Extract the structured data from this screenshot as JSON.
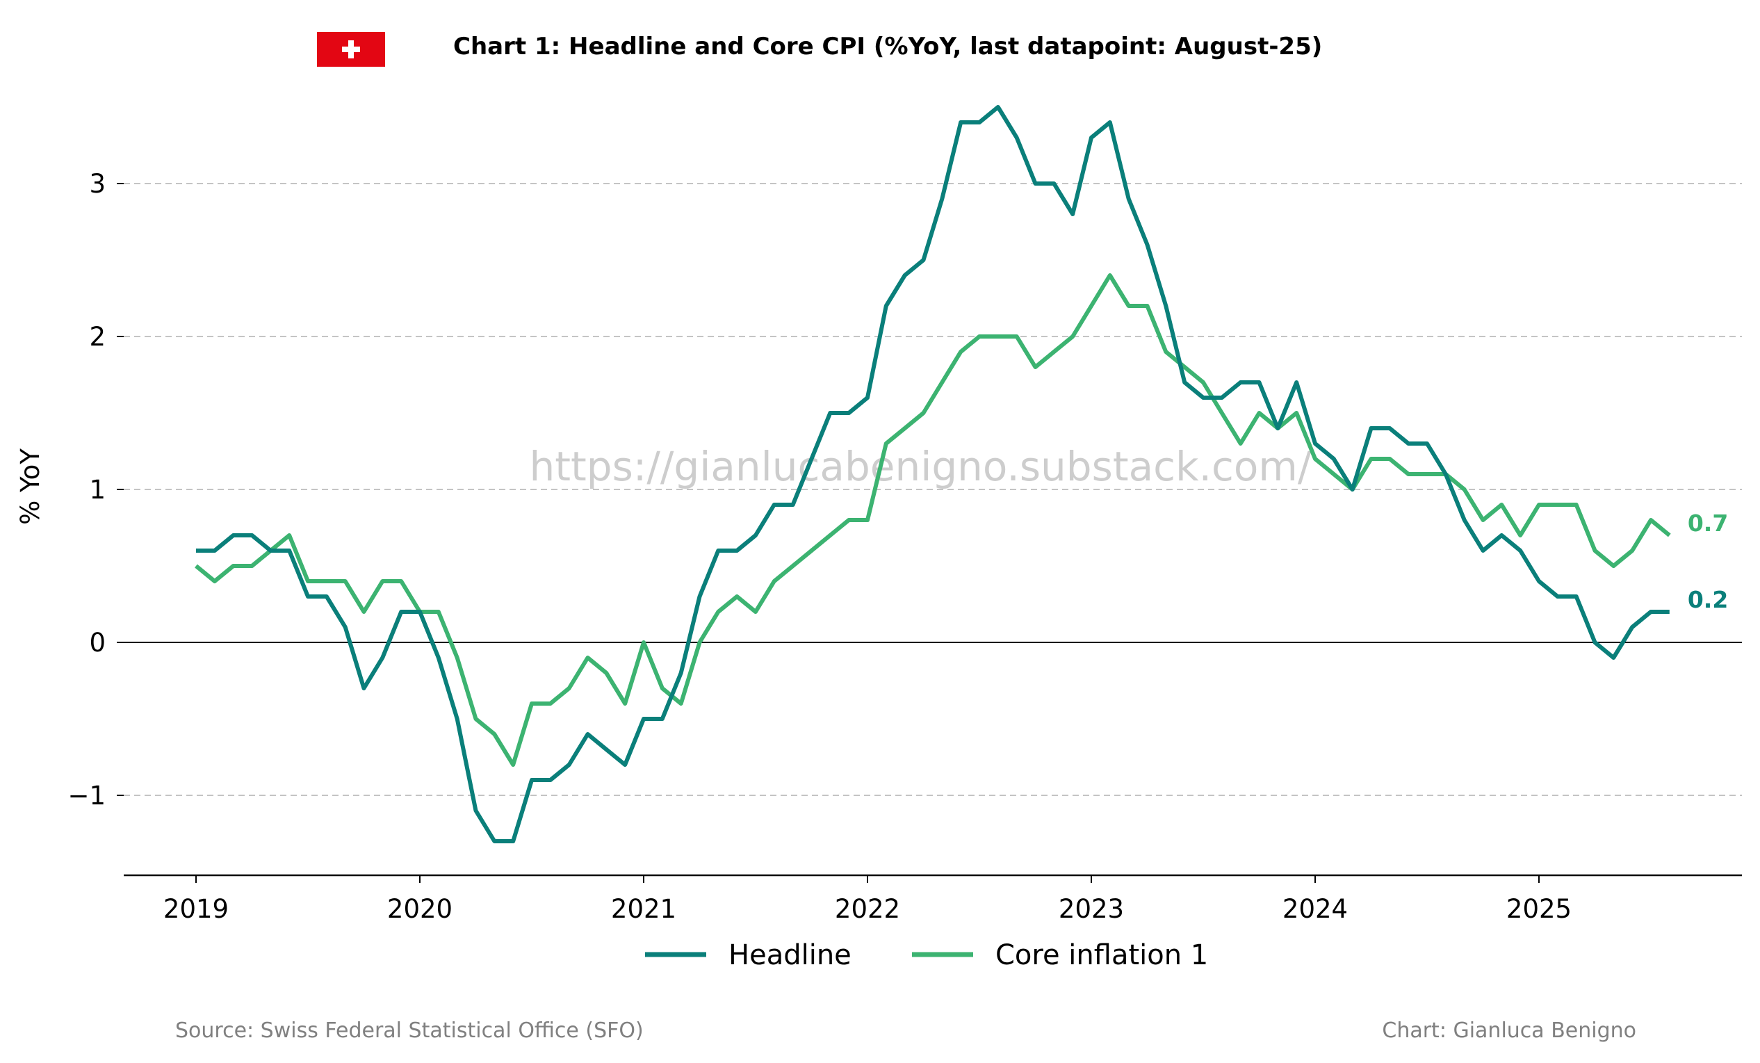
{
  "flag": {
    "name": "swiss-flag",
    "background": "#e30613",
    "cross": "#ffffff"
  },
  "watermark": "https://gianlucabenigno.substack.com/",
  "footer": {
    "source": "Source: Swiss Federal Statistical Office (SFO)",
    "credit": "Chart: Gianluca Benigno"
  },
  "chart_data": {
    "type": "line",
    "title": "Chart 1: Headline and Core CPI (%YoY, last datapoint: August-25)",
    "xlabel": "",
    "ylabel": "% YoY",
    "x_start": "2019-01",
    "x_ticks": [
      "2019",
      "2020",
      "2021",
      "2022",
      "2023",
      "2024",
      "2025"
    ],
    "y_ticks": [
      -1,
      0,
      1,
      2,
      3
    ],
    "y_tick_labels": [
      "−1",
      "0",
      "1",
      "2",
      "3"
    ],
    "ylim": [
      -1.55,
      3.6
    ],
    "grid": "horizontal dashed",
    "legend_position": "bottom-center",
    "end_labels": {
      "Headline": "0.2",
      "Core inflation 1": "0.7"
    },
    "series": [
      {
        "name": "Headline",
        "color": "#0a7f7a",
        "values": [
          0.6,
          0.6,
          0.7,
          0.7,
          0.6,
          0.6,
          0.3,
          0.3,
          0.1,
          -0.3,
          -0.1,
          0.2,
          0.2,
          -0.1,
          -0.5,
          -1.1,
          -1.3,
          -1.3,
          -0.9,
          -0.9,
          -0.8,
          -0.6,
          -0.7,
          -0.8,
          -0.5,
          -0.5,
          -0.2,
          0.3,
          0.6,
          0.6,
          0.7,
          0.9,
          0.9,
          1.2,
          1.5,
          1.5,
          1.6,
          2.2,
          2.4,
          2.5,
          2.9,
          3.4,
          3.4,
          3.5,
          3.3,
          3.0,
          3.0,
          2.8,
          3.3,
          3.4,
          2.9,
          2.6,
          2.2,
          1.7,
          1.6,
          1.6,
          1.7,
          1.7,
          1.4,
          1.7,
          1.3,
          1.2,
          1.0,
          1.4,
          1.4,
          1.3,
          1.3,
          1.1,
          0.8,
          0.6,
          0.7,
          0.6,
          0.4,
          0.3,
          0.3,
          0.0,
          -0.1,
          0.1,
          0.2,
          0.2
        ]
      },
      {
        "name": "Core inflation 1",
        "color": "#3cb371",
        "values": [
          0.5,
          0.4,
          0.5,
          0.5,
          0.6,
          0.7,
          0.4,
          0.4,
          0.4,
          0.2,
          0.4,
          0.4,
          0.2,
          0.2,
          -0.1,
          -0.5,
          -0.6,
          -0.8,
          -0.4,
          -0.4,
          -0.3,
          -0.1,
          -0.2,
          -0.4,
          0.0,
          -0.3,
          -0.4,
          0.0,
          0.2,
          0.3,
          0.2,
          0.4,
          0.5,
          0.6,
          0.7,
          0.8,
          0.8,
          1.3,
          1.4,
          1.5,
          1.7,
          1.9,
          2.0,
          2.0,
          2.0,
          1.8,
          1.9,
          2.0,
          2.2,
          2.4,
          2.2,
          2.2,
          1.9,
          1.8,
          1.7,
          1.5,
          1.3,
          1.5,
          1.4,
          1.5,
          1.2,
          1.1,
          1.0,
          1.2,
          1.2,
          1.1,
          1.1,
          1.1,
          1.0,
          0.8,
          0.9,
          0.7,
          0.9,
          0.9,
          0.9,
          0.6,
          0.5,
          0.6,
          0.8,
          0.7
        ]
      }
    ]
  }
}
